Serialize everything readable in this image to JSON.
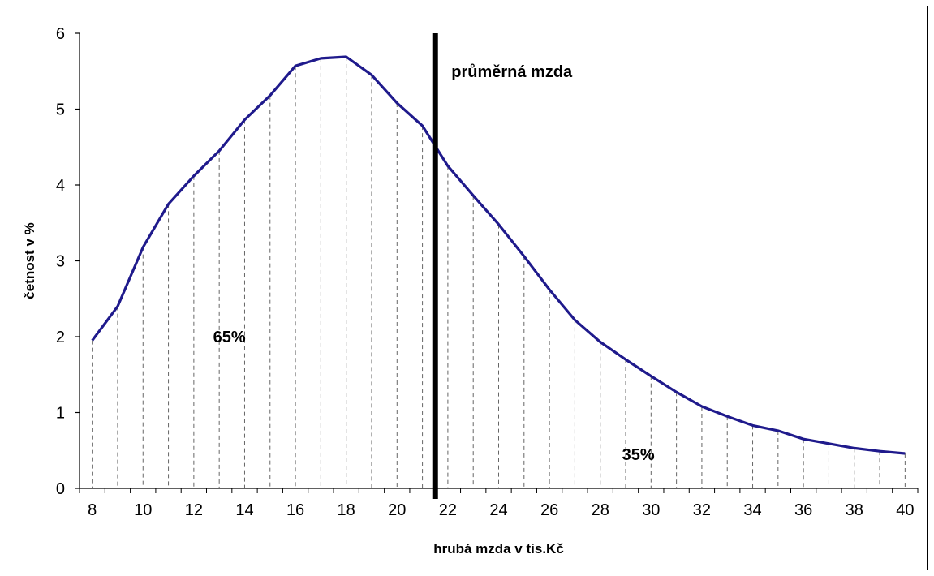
{
  "chart_data": {
    "type": "line",
    "xlabel": "hrubá mzda v tis.Kč",
    "ylabel": "četnost v %",
    "xlim": [
      7.5,
      40.5
    ],
    "ylim": [
      0,
      6
    ],
    "x_ticks": [
      8,
      10,
      12,
      14,
      16,
      18,
      20,
      22,
      24,
      26,
      28,
      30,
      32,
      34,
      36,
      38,
      40
    ],
    "y_ticks": [
      0,
      1,
      2,
      3,
      4,
      5,
      6
    ],
    "line_color": "#1f1a8c",
    "grid": "vertical dashed drop lines at each data point",
    "series": [
      {
        "x": [
          8,
          9,
          10,
          11,
          12,
          13,
          14,
          15,
          16,
          17,
          18,
          19,
          20,
          21,
          22,
          23,
          24,
          25,
          26,
          27,
          28,
          29,
          30,
          31,
          32,
          33,
          34,
          35,
          36,
          37,
          38,
          39,
          40
        ],
        "y": [
          1.95,
          2.4,
          3.18,
          3.75,
          4.12,
          4.45,
          4.86,
          5.18,
          5.57,
          5.67,
          5.69,
          5.45,
          5.08,
          4.78,
          4.25,
          3.86,
          3.48,
          3.06,
          2.62,
          2.22,
          1.93,
          1.7,
          1.48,
          1.27,
          1.08,
          0.95,
          0.83,
          0.76,
          0.65,
          0.59,
          0.53,
          0.49,
          0.46
        ]
      }
    ],
    "reference_line": {
      "x": 21.5,
      "label": "průměrná mzda",
      "color": "#000000"
    },
    "annotations": [
      {
        "text": "65%",
        "x": 13.4,
        "y": 2.0
      },
      {
        "text": "35%",
        "x": 29.5,
        "y": 0.45
      }
    ]
  }
}
